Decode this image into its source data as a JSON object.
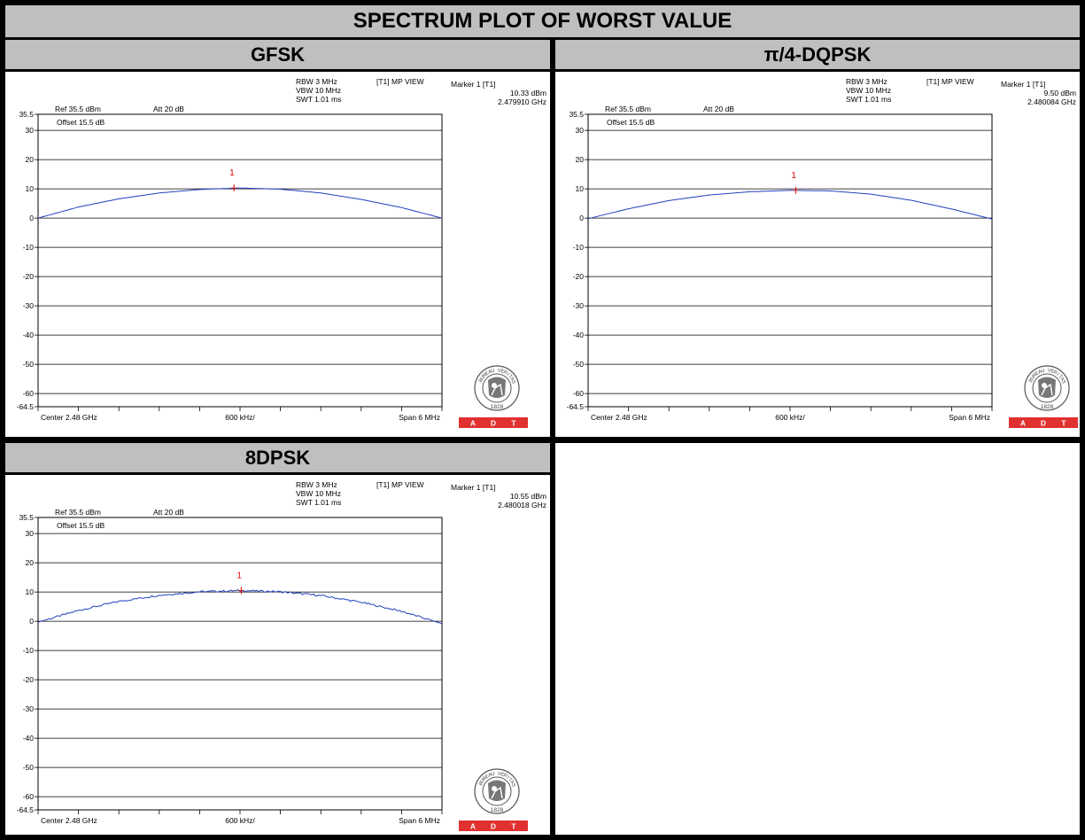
{
  "page": {
    "title": "SPECTRUM PLOT OF WORST VALUE"
  },
  "colors": {
    "trace": "#1f3fbf",
    "marker": "#e00000",
    "header_bg": "#bfbfbf",
    "adt_red": "#e03030"
  },
  "logo": {
    "ring_text": "BUREAU VERITAS",
    "year": "1828",
    "adt_letters": [
      "A",
      "D",
      "T"
    ]
  },
  "chart_data": [
    {
      "type": "line",
      "title": "GFSK",
      "settings": {
        "ref": "Ref 35.5 dBm",
        "att": "Att 20 dB",
        "rbw": "RBW 3 MHz",
        "vbw": "VBW 10 MHz",
        "swt": "SWT 1.01 ms",
        "view": "[T1] MP VIEW",
        "offset": "Offset 15.5 dB"
      },
      "marker": {
        "label": "Marker 1 [T1]",
        "level": "10.33 dBm",
        "freq": "2.479910 GHz",
        "id": "1",
        "x": 2.47991,
        "y": 10.33
      },
      "x_labels": {
        "left": "Center 2.48 GHz",
        "mid": "600 kHz/",
        "right": "Span 6 MHz"
      },
      "xlim": [
        2.477,
        2.483
      ],
      "ylim": [
        -64.5,
        35.5
      ],
      "y_ticks": [
        35.5,
        30,
        20,
        10,
        0,
        -10,
        -20,
        -30,
        -40,
        -50,
        -60,
        -64.5
      ],
      "y_tick_labels": [
        "35.5",
        "30",
        "20",
        "10",
        "0",
        "-10",
        "-20",
        "-30",
        "-40",
        "-50",
        "-60",
        "-64.5"
      ],
      "series": [
        {
          "x": [
            2.477,
            2.4776,
            2.4782,
            2.4788,
            2.4794,
            2.48,
            2.4806,
            2.4812,
            2.4818,
            2.4824,
            2.483
          ],
          "y": [
            0,
            3.8,
            6.6,
            8.6,
            9.8,
            10.3,
            9.9,
            8.6,
            6.4,
            3.6,
            0
          ]
        }
      ]
    },
    {
      "type": "line",
      "title": "π/4-DQPSK",
      "settings": {
        "ref": "Ref 35.5 dBm",
        "att": "Att 20 dB",
        "rbw": "RBW 3 MHz",
        "vbw": "VBW 10 MHz",
        "swt": "SWT 1.01 ms",
        "view": "[T1] MP VIEW",
        "offset": "Offset 15.5 dB"
      },
      "marker": {
        "label": "Marker 1 [T1]",
        "level": "9.50 dBm",
        "freq": "2.480084 GHz",
        "id": "1",
        "x": 2.480084,
        "y": 9.5
      },
      "x_labels": {
        "left": "Center 2.48 GHz",
        "mid": "600 kHz/",
        "right": "Span 6 MHz"
      },
      "xlim": [
        2.477,
        2.483
      ],
      "ylim": [
        -64.5,
        35.5
      ],
      "y_ticks": [
        35.5,
        30,
        20,
        10,
        0,
        -10,
        -20,
        -30,
        -40,
        -50,
        -60,
        -64.5
      ],
      "y_tick_labels": [
        "35.5",
        "30",
        "20",
        "10",
        "0",
        "-10",
        "-20",
        "-30",
        "-40",
        "-50",
        "-60",
        "-64.5"
      ],
      "series": [
        {
          "x": [
            2.477,
            2.4776,
            2.4782,
            2.4788,
            2.4794,
            2.48,
            2.4806,
            2.4812,
            2.4818,
            2.4824,
            2.483
          ],
          "y": [
            -0.2,
            3.2,
            6.0,
            7.9,
            9.0,
            9.5,
            9.3,
            8.2,
            6.1,
            3.1,
            -0.3
          ]
        }
      ]
    },
    {
      "type": "line",
      "title": "8DPSK",
      "settings": {
        "ref": "Ref 35.5 dBm",
        "att": "Att 20 dB",
        "rbw": "RBW 3 MHz",
        "vbw": "VBW 10 MHz",
        "swt": "SWT 1.01 ms",
        "view": "[T1] MP VIEW",
        "offset": "Offset 15.5 dB"
      },
      "marker": {
        "label": "Marker 1 [T1]",
        "level": "10.55 dBm",
        "freq": "2.480018 GHz",
        "id": "1",
        "x": 2.480018,
        "y": 10.55
      },
      "x_labels": {
        "left": "Center 2.48 GHz",
        "mid": "600 kHz/",
        "right": "Span 6 MHz"
      },
      "xlim": [
        2.477,
        2.483
      ],
      "ylim": [
        -64.5,
        35.5
      ],
      "y_ticks": [
        35.5,
        30,
        20,
        10,
        0,
        -10,
        -20,
        -30,
        -40,
        -50,
        -60,
        -64.5
      ],
      "y_tick_labels": [
        "35.5",
        "30",
        "20",
        "10",
        "0",
        "-10",
        "-20",
        "-30",
        "-40",
        "-50",
        "-60",
        "-64.5"
      ],
      "series": [
        {
          "x": [
            2.477,
            2.4776,
            2.4782,
            2.4788,
            2.4794,
            2.48,
            2.4806,
            2.4812,
            2.4818,
            2.4824,
            2.483
          ],
          "y": [
            -0.3,
            3.7,
            6.8,
            8.9,
            10.1,
            10.5,
            10.1,
            8.8,
            6.5,
            3.4,
            -0.8
          ]
        }
      ]
    }
  ]
}
